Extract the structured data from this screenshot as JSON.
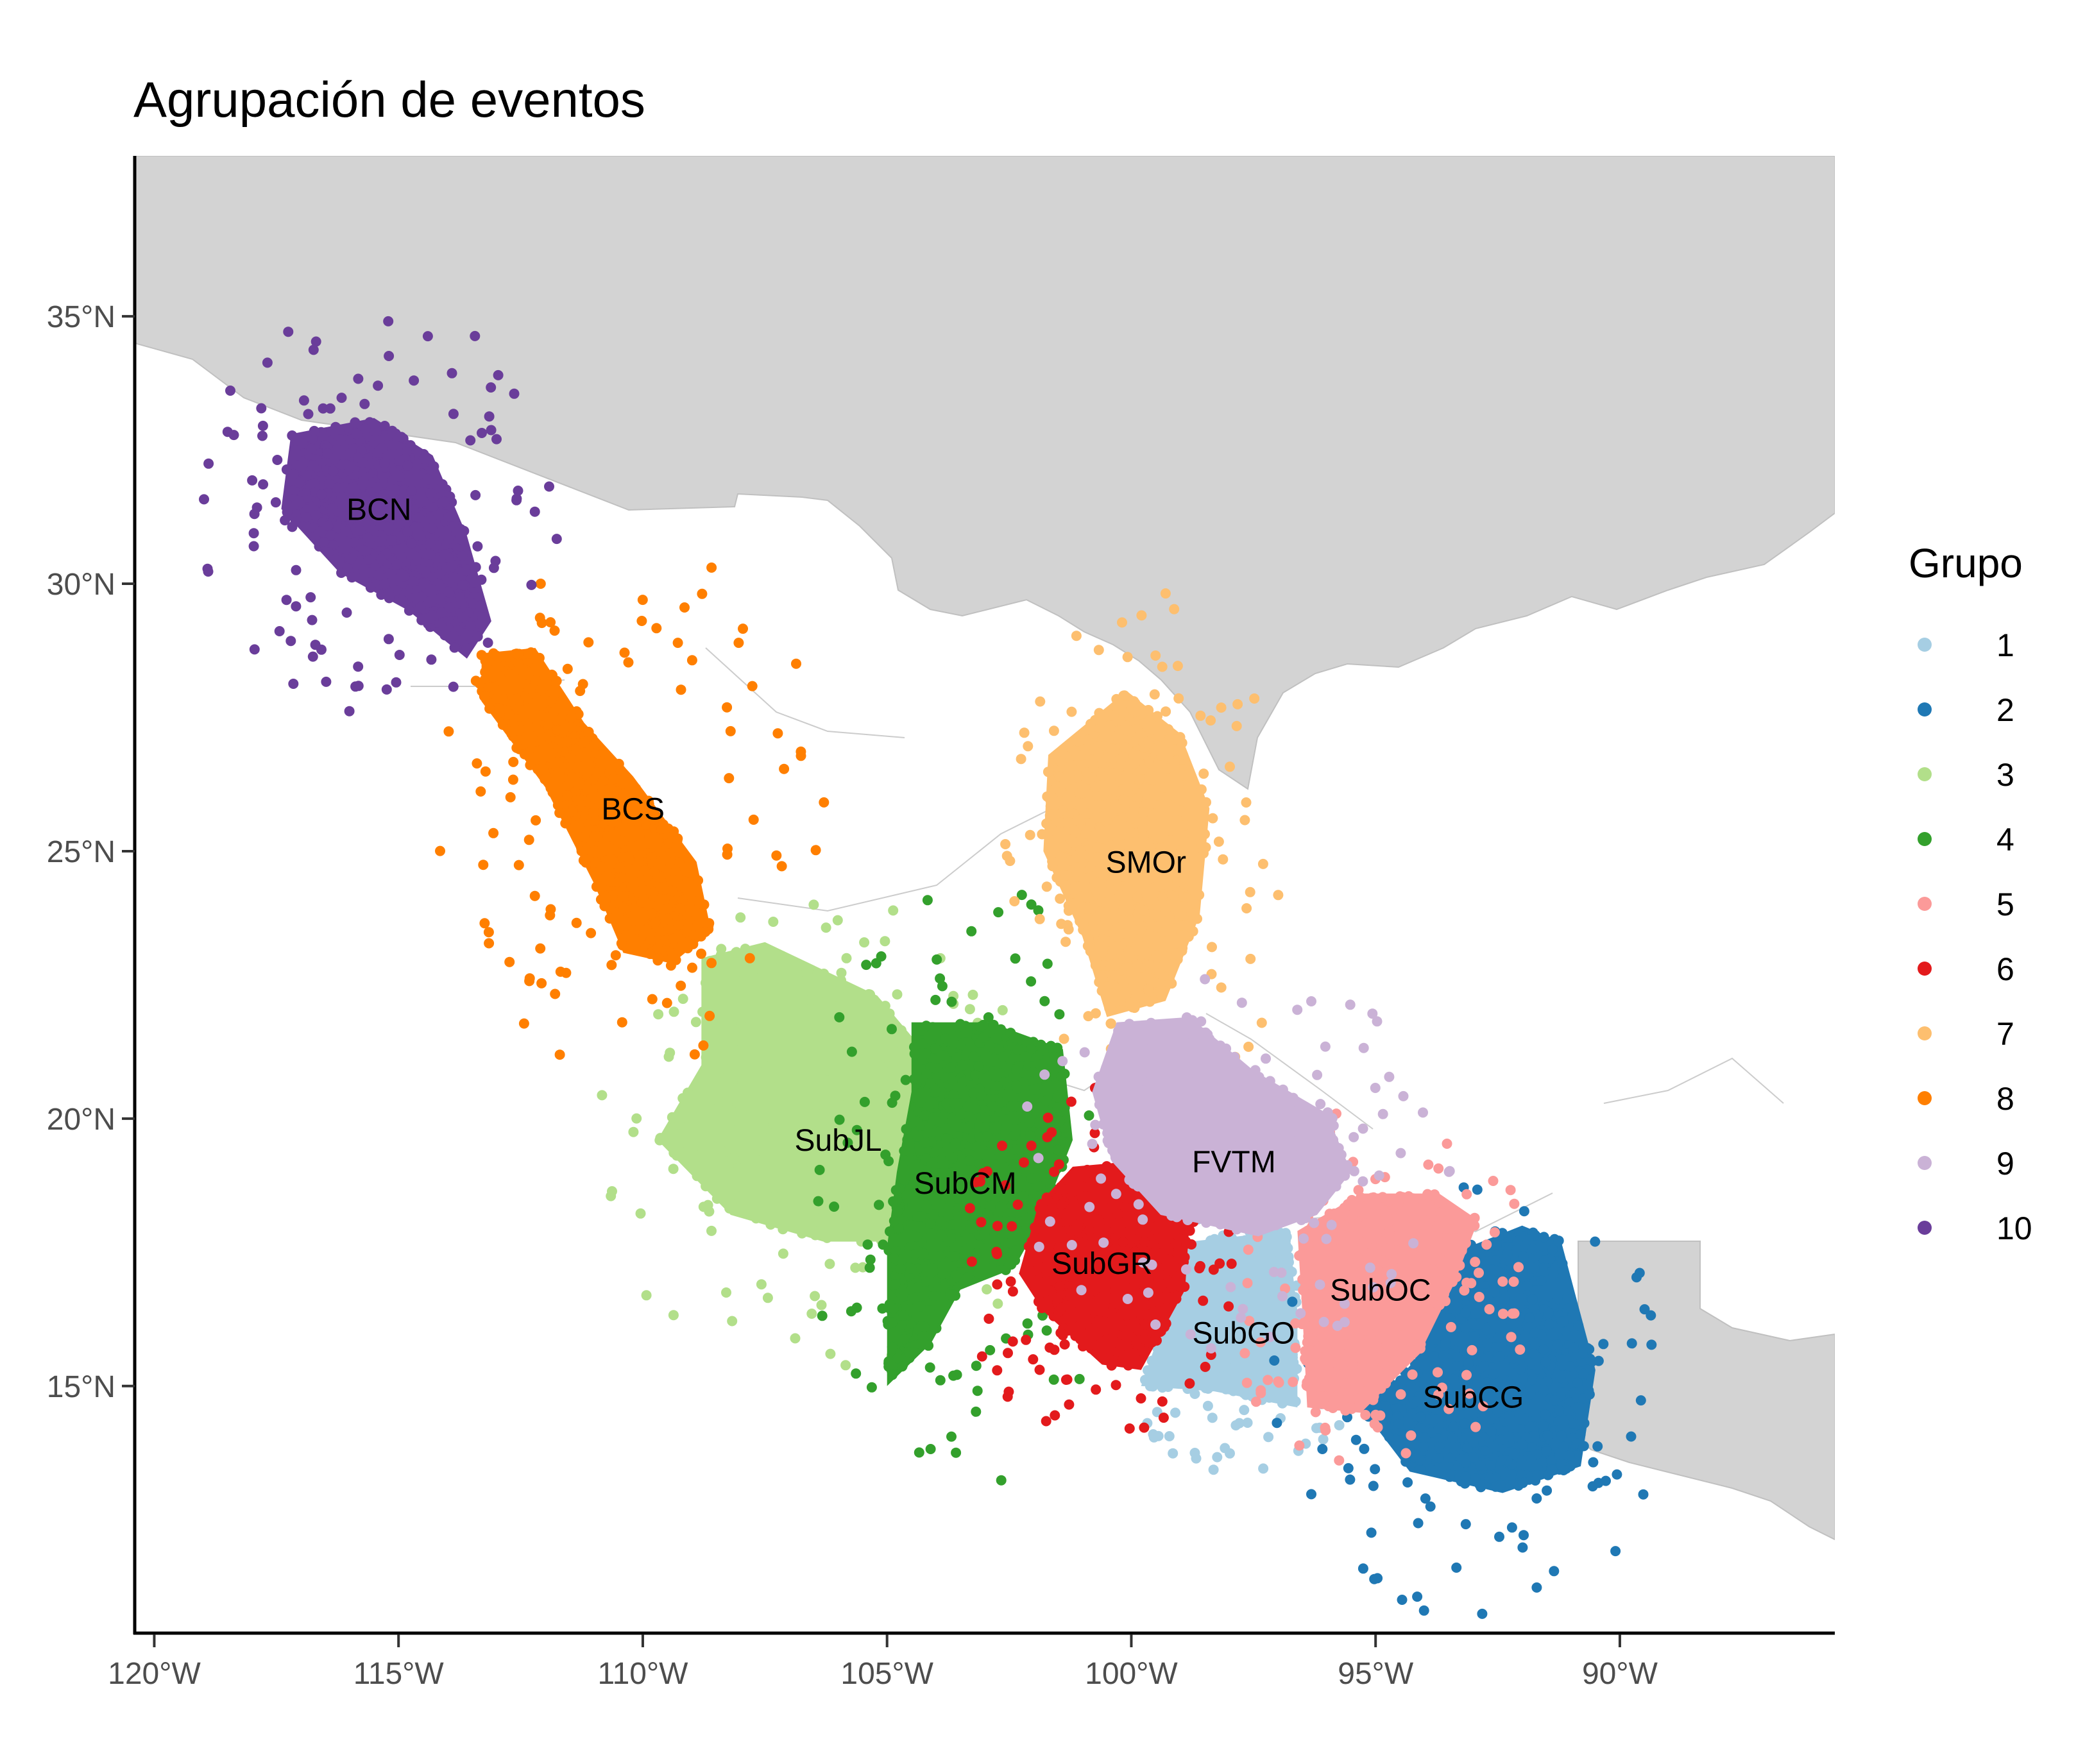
{
  "title": "Agrupación de eventos",
  "chart_data": {
    "type": "scatter",
    "title": "Agrupación de eventos",
    "xlabel": "",
    "ylabel": "",
    "xlim": [
      -120.4,
      -85.6
    ],
    "ylim": [
      10.5,
      38.0
    ],
    "x_ticks": [
      {
        "value": -120,
        "label": "120°W"
      },
      {
        "value": -115,
        "label": "115°W"
      },
      {
        "value": -110,
        "label": "110°W"
      },
      {
        "value": -105,
        "label": "105°W"
      },
      {
        "value": -100,
        "label": "100°W"
      },
      {
        "value": -95,
        "label": "95°W"
      },
      {
        "value": -90,
        "label": "90°W"
      }
    ],
    "y_ticks": [
      {
        "value": 15,
        "label": "15°N"
      },
      {
        "value": 20,
        "label": "20°N"
      },
      {
        "value": 25,
        "label": "25°N"
      },
      {
        "value": 30,
        "label": "30°N"
      },
      {
        "value": 35,
        "label": "35°N"
      }
    ],
    "legend": {
      "title": "Grupo",
      "position": "right",
      "entries": [
        {
          "label": "1",
          "color": "#a6cee3"
        },
        {
          "label": "2",
          "color": "#1f78b4"
        },
        {
          "label": "3",
          "color": "#b2df8a"
        },
        {
          "label": "4",
          "color": "#33a02c"
        },
        {
          "label": "5",
          "color": "#fb9a99"
        },
        {
          "label": "6",
          "color": "#e31a1c"
        },
        {
          "label": "7",
          "color": "#fdbf6f"
        },
        {
          "label": "8",
          "color": "#ff7f00"
        },
        {
          "label": "9",
          "color": "#cab2d6"
        },
        {
          "label": "10",
          "color": "#6a3d9a"
        }
      ]
    },
    "clusters": [
      {
        "group": "1",
        "label": "SubGO",
        "color": "#a6cee3",
        "center": [
          -97.7,
          16.0
        ],
        "polygon": [
          [
            -98.8,
            17.7
          ],
          [
            -96.8,
            17.9
          ],
          [
            -96.6,
            16.4
          ],
          [
            -96.6,
            14.6
          ],
          [
            -98.3,
            14.9
          ],
          [
            -99.8,
            15.0
          ],
          [
            -99.3,
            16.3
          ]
        ]
      },
      {
        "group": "2",
        "label": "SubCG",
        "color": "#1f78b4",
        "center": [
          -93.0,
          14.8
        ],
        "polygon": [
          [
            -93.1,
            17.6
          ],
          [
            -92.0,
            18.0
          ],
          [
            -91.2,
            17.7
          ],
          [
            -90.5,
            15.3
          ],
          [
            -90.8,
            13.5
          ],
          [
            -92.4,
            13.0
          ],
          [
            -94.3,
            13.4
          ],
          [
            -95.3,
            14.6
          ],
          [
            -94.2,
            15.4
          ]
        ]
      },
      {
        "group": "3",
        "label": "SubJL",
        "color": "#b2df8a",
        "center": [
          -106.0,
          19.6
        ],
        "polygon": [
          [
            -108.8,
            23.0
          ],
          [
            -107.5,
            23.3
          ],
          [
            -105.2,
            22.3
          ],
          [
            -104.0,
            21.0
          ],
          [
            -104.6,
            19.2
          ],
          [
            -104.8,
            17.7
          ],
          [
            -106.3,
            17.7
          ],
          [
            -108.2,
            18.2
          ],
          [
            -109.7,
            19.6
          ],
          [
            -108.8,
            21.0
          ]
        ]
      },
      {
        "group": "4",
        "label": "SubCM",
        "color": "#33a02c",
        "center": [
          -103.4,
          18.8
        ],
        "polygon": [
          [
            -104.5,
            21.8
          ],
          [
            -102.9,
            21.8
          ],
          [
            -101.4,
            21.3
          ],
          [
            -101.2,
            19.6
          ],
          [
            -101.8,
            18.2
          ],
          [
            -102.4,
            17.2
          ],
          [
            -103.5,
            16.8
          ],
          [
            -104.1,
            15.8
          ],
          [
            -105.0,
            15.0
          ],
          [
            -105.0,
            17.6
          ],
          [
            -104.8,
            19.0
          ],
          [
            -104.5,
            20.5
          ]
        ]
      },
      {
        "group": "5",
        "label": "SubOC",
        "color": "#fb9a99",
        "center": [
          -94.9,
          16.8
        ],
        "polygon": [
          [
            -96.6,
            17.9
          ],
          [
            -95.3,
            18.6
          ],
          [
            -93.7,
            18.6
          ],
          [
            -92.9,
            18.1
          ],
          [
            -93.4,
            16.9
          ],
          [
            -94.1,
            15.6
          ],
          [
            -95.3,
            14.5
          ],
          [
            -96.4,
            14.6
          ],
          [
            -96.5,
            16.4
          ]
        ]
      },
      {
        "group": "6",
        "label": "SubGR",
        "color": "#e31a1c",
        "center": [
          -100.6,
          17.3
        ],
        "polygon": [
          [
            -101.2,
            19.1
          ],
          [
            -100.0,
            19.2
          ],
          [
            -98.8,
            18.2
          ],
          [
            -98.9,
            16.8
          ],
          [
            -99.8,
            15.3
          ],
          [
            -100.6,
            15.4
          ],
          [
            -101.8,
            16.4
          ],
          [
            -102.3,
            17.1
          ],
          [
            -101.9,
            18.4
          ]
        ]
      },
      {
        "group": "7",
        "label": "SMOr",
        "color": "#fdbf6f",
        "center": [
          -99.7,
          24.8
        ],
        "polygon": [
          [
            -101.7,
            26.8
          ],
          [
            -100.1,
            28.0
          ],
          [
            -99.0,
            27.2
          ],
          [
            -98.4,
            25.8
          ],
          [
            -98.6,
            23.8
          ],
          [
            -99.3,
            22.2
          ],
          [
            -100.5,
            21.9
          ],
          [
            -101.0,
            23.4
          ],
          [
            -101.8,
            25.0
          ]
        ]
      },
      {
        "group": "8",
        "label": "BCS",
        "color": "#ff7f00",
        "center": [
          -110.2,
          25.8
        ],
        "polygon": [
          [
            -113.3,
            28.7
          ],
          [
            -112.2,
            28.8
          ],
          [
            -111.2,
            27.4
          ],
          [
            -110.2,
            26.4
          ],
          [
            -108.9,
            24.8
          ],
          [
            -108.6,
            23.5
          ],
          [
            -109.4,
            22.9
          ],
          [
            -110.4,
            23.1
          ],
          [
            -111.0,
            24.4
          ],
          [
            -112.0,
            26.2
          ],
          [
            -113.3,
            27.8
          ]
        ]
      },
      {
        "group": "9",
        "label": "FVTM",
        "color": "#cab2d6",
        "center": [
          -97.9,
          19.2
        ],
        "polygon": [
          [
            -100.3,
            21.8
          ],
          [
            -98.8,
            21.9
          ],
          [
            -97.5,
            20.9
          ],
          [
            -96.0,
            20.1
          ],
          [
            -95.5,
            19.0
          ],
          [
            -96.2,
            18.2
          ],
          [
            -97.4,
            17.8
          ],
          [
            -99.4,
            18.2
          ],
          [
            -100.4,
            19.2
          ],
          [
            -100.8,
            20.5
          ]
        ]
      },
      {
        "group": "10",
        "label": "BCN",
        "color": "#6a3d9a",
        "center": [
          -115.4,
          31.4
        ],
        "polygon": [
          [
            -117.2,
            32.8
          ],
          [
            -115.5,
            33.1
          ],
          [
            -114.3,
            32.4
          ],
          [
            -113.6,
            30.9
          ],
          [
            -113.1,
            29.3
          ],
          [
            -113.6,
            28.6
          ],
          [
            -114.8,
            29.5
          ],
          [
            -116.2,
            30.2
          ],
          [
            -117.4,
            31.4
          ]
        ]
      }
    ]
  }
}
